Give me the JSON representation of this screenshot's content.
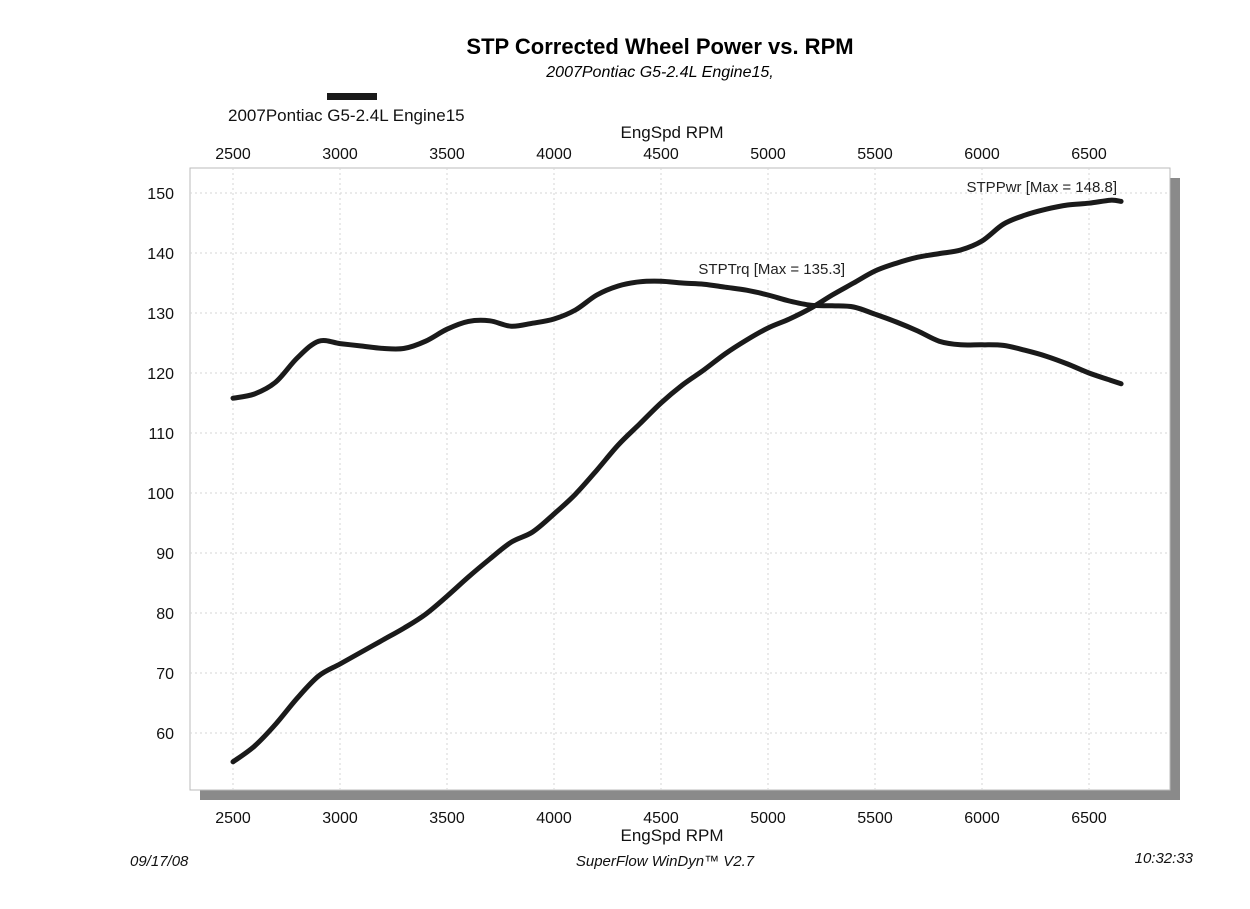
{
  "chart_data": {
    "type": "line",
    "title": "STP Corrected Wheel Power vs. RPM",
    "subtitle": "2007Pontiac G5-2.4L Engine15,",
    "legend": {
      "label": "2007Pontiac G5-2.4L Engine15",
      "placement": "top-left",
      "color": "#1a1a1a"
    },
    "xlabel_top": "EngSpd  RPM",
    "xlabel_bottom": "EngSpd  RPM",
    "xlim": [
      2500,
      6700
    ],
    "ylim": [
      54,
      151
    ],
    "x_ticks": [
      2500,
      3000,
      3500,
      4000,
      4500,
      5000,
      5500,
      6000,
      6500
    ],
    "x_tick_labels": [
      "2500",
      "3000",
      "3500",
      "4000",
      "4500",
      "5000",
      "5500",
      "6000",
      "6500"
    ],
    "y_ticks": [
      60,
      70,
      80,
      90,
      100,
      110,
      120,
      130,
      140,
      150
    ],
    "y_tick_labels": [
      "60",
      "70",
      "80",
      "90",
      "100",
      "110",
      "120",
      "130",
      "140",
      "150"
    ],
    "grid": true,
    "line_color": "#1a1a1a",
    "series": [
      {
        "name": "STPPwr",
        "annotation": "STPPwr [Max = 148.8]",
        "x": [
          2500,
          2600,
          2700,
          2800,
          2900,
          3000,
          3100,
          3200,
          3300,
          3400,
          3500,
          3600,
          3700,
          3800,
          3900,
          4000,
          4100,
          4200,
          4300,
          4400,
          4500,
          4600,
          4700,
          4800,
          4900,
          5000,
          5100,
          5200,
          5300,
          5400,
          5500,
          5600,
          5700,
          5800,
          5900,
          6000,
          6100,
          6200,
          6300,
          6400,
          6500,
          6600,
          6650
        ],
        "y": [
          55.2,
          57.8,
          61.5,
          65.8,
          69.5,
          71.5,
          73.5,
          75.5,
          77.5,
          79.8,
          82.8,
          86.0,
          89.0,
          91.8,
          93.5,
          96.5,
          99.8,
          103.8,
          108.0,
          111.5,
          115.0,
          118.0,
          120.5,
          123.2,
          125.5,
          127.5,
          129.0,
          130.8,
          133.0,
          135.0,
          137.0,
          138.3,
          139.3,
          139.9,
          140.5,
          142.0,
          144.8,
          146.3,
          147.3,
          148.0,
          148.3,
          148.8,
          148.6
        ]
      },
      {
        "name": "STPTrq",
        "annotation": "STPTrq [Max = 135.3]",
        "x": [
          2500,
          2600,
          2700,
          2800,
          2900,
          3000,
          3100,
          3200,
          3300,
          3400,
          3500,
          3600,
          3700,
          3800,
          3900,
          4000,
          4100,
          4200,
          4300,
          4400,
          4500,
          4600,
          4700,
          4800,
          4900,
          5000,
          5100,
          5200,
          5300,
          5400,
          5500,
          5600,
          5700,
          5800,
          5900,
          6000,
          6100,
          6200,
          6300,
          6400,
          6500,
          6600,
          6650
        ],
        "y": [
          115.8,
          116.5,
          118.5,
          122.5,
          125.3,
          124.9,
          124.5,
          124.1,
          124.1,
          125.3,
          127.3,
          128.6,
          128.7,
          127.8,
          128.3,
          129.0,
          130.5,
          133.0,
          134.5,
          135.2,
          135.3,
          135.0,
          134.8,
          134.3,
          133.8,
          133.0,
          132.0,
          131.3,
          131.2,
          131.0,
          129.8,
          128.5,
          127.0,
          125.3,
          124.7,
          124.7,
          124.6,
          123.8,
          122.8,
          121.5,
          120.0,
          118.8,
          118.2
        ]
      }
    ]
  },
  "footer": {
    "date": "09/17/08",
    "software": "SuperFlow WinDyn™ V2.7",
    "time": "10:32:33"
  }
}
